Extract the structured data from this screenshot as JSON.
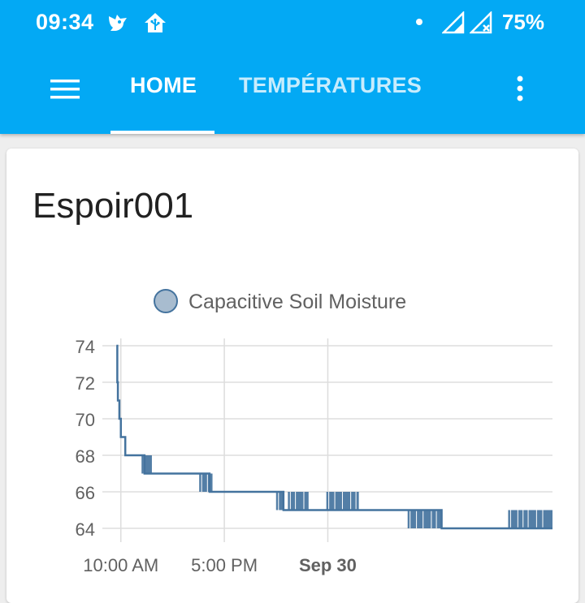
{
  "status_bar": {
    "time": "09:34",
    "battery": "75%",
    "icons": [
      "notification-bird-icon",
      "home-assistant-icon",
      "dot-icon",
      "signal-icon",
      "no-signal-icon"
    ]
  },
  "toolbar": {
    "tabs": [
      {
        "label": "HOME",
        "active": true
      },
      {
        "label": "TEMPÉRATURES",
        "active": false
      }
    ]
  },
  "colors": {
    "app_bar": "#03a9f4",
    "series": "#44739e",
    "legend_fill": "#a8bccf"
  },
  "card": {
    "title": "Espoir001"
  },
  "chart_data": {
    "type": "line",
    "series": [
      {
        "name": "Capacitive Soil Moisture",
        "points": [
          [
            0.0,
            74
          ],
          [
            0.06,
            72
          ],
          [
            0.1,
            71
          ],
          [
            0.2,
            70
          ],
          [
            0.3,
            69
          ],
          [
            0.6,
            68
          ],
          [
            1.8,
            68
          ],
          [
            1.9,
            67
          ],
          [
            6.0,
            67
          ],
          [
            6.3,
            66
          ],
          [
            11.0,
            66
          ],
          [
            11.3,
            65
          ],
          [
            20.0,
            65
          ],
          [
            22.0,
            64
          ],
          [
            29.5,
            64
          ]
        ],
        "noise_bands": [
          {
            "from": 1.7,
            "to": 2.4,
            "low": 67,
            "high": 68
          },
          {
            "from": 5.6,
            "to": 6.5,
            "low": 66,
            "high": 67
          },
          {
            "from": 10.8,
            "to": 11.3,
            "low": 65,
            "high": 66
          },
          {
            "from": 11.6,
            "to": 13.0,
            "low": 65,
            "high": 66
          },
          {
            "from": 14.2,
            "to": 16.4,
            "low": 65,
            "high": 66
          },
          {
            "from": 19.7,
            "to": 22.0,
            "low": 64,
            "high": 65
          },
          {
            "from": 26.5,
            "to": 29.5,
            "low": 64,
            "high": 65
          }
        ]
      }
    ],
    "yticks": [
      64,
      66,
      68,
      70,
      72,
      74
    ],
    "ylim": [
      63.6,
      74.4
    ],
    "xlim": [
      -0.4,
      29.5
    ],
    "xticks": [
      {
        "value": 0.3,
        "label": "10:00 AM",
        "bold": false
      },
      {
        "value": 7.3,
        "label": "5:00 PM",
        "bold": false
      },
      {
        "value": 14.3,
        "label": "Sep 30",
        "bold": true
      }
    ],
    "grid": true,
    "legend_position": "top-center"
  }
}
